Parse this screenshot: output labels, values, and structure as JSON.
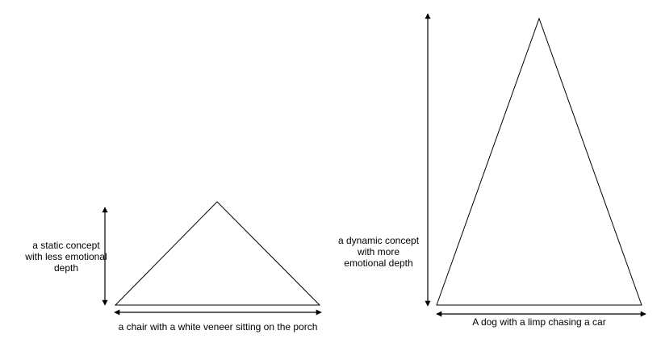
{
  "colors": {
    "background": "#ffffff",
    "stroke": "#000000"
  },
  "left_diagram": {
    "side_label": "a static concept\nwith less emotional\ndepth",
    "base_label": "a chair with a white veneer sitting on the porch"
  },
  "right_diagram": {
    "side_label": "a dynamic concept\nwith more\nemotional depth",
    "base_label": "A dog with a limp chasing a car"
  }
}
